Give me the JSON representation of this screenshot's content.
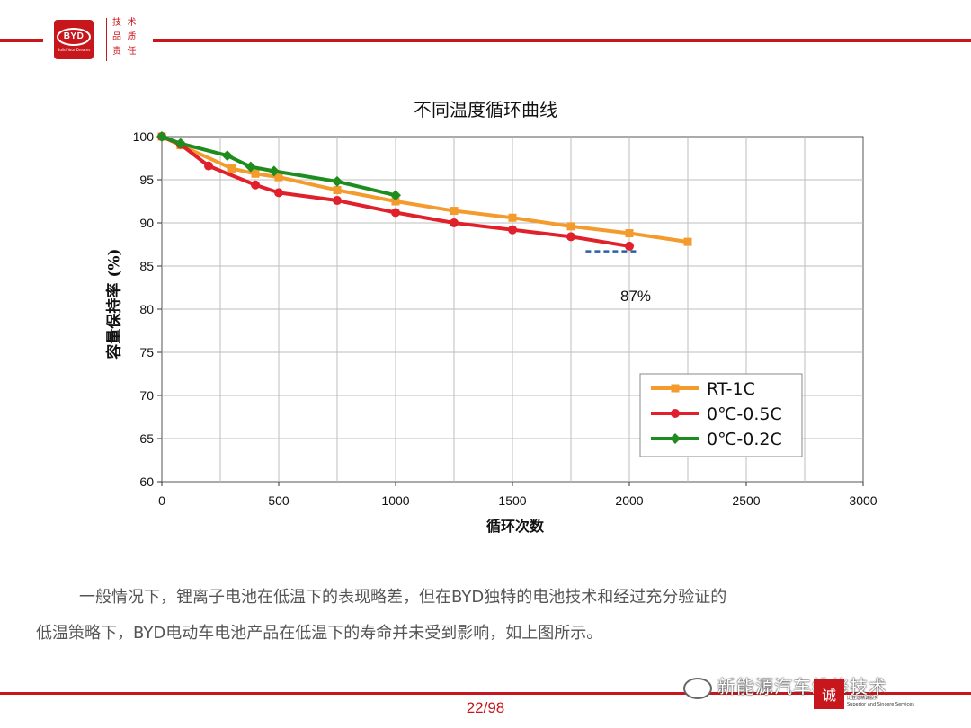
{
  "header": {
    "brand_logo_text": "BYD",
    "brand_logo_sub": "Build Your Dreams",
    "seal_text": [
      "技",
      "术",
      "品",
      "质",
      "责",
      "任"
    ]
  },
  "chart_data": {
    "type": "line",
    "title": "不同温度循环曲线",
    "xlabel": "循环次数",
    "ylabel": "容量保持率 (%)",
    "xlim": [
      0,
      3000
    ],
    "ylim": [
      60,
      100
    ],
    "xticks": [
      0,
      500,
      1000,
      1500,
      2000,
      2500,
      3000
    ],
    "yticks": [
      60,
      65,
      70,
      75,
      80,
      85,
      90,
      95,
      100
    ],
    "grid": true,
    "legend_position": "bottom-right",
    "series": [
      {
        "name": "RT-1C",
        "color": "#f39c2d",
        "marker": "square",
        "x": [
          0,
          80,
          300,
          400,
          500,
          750,
          1000,
          1250,
          1500,
          1750,
          2000,
          2250
        ],
        "y": [
          100,
          99.0,
          96.3,
          95.7,
          95.3,
          93.8,
          92.5,
          91.4,
          90.6,
          89.6,
          88.8,
          87.8
        ]
      },
      {
        "name": "0℃-0.5C",
        "color": "#e0202a",
        "marker": "circle",
        "x": [
          0,
          80,
          200,
          400,
          500,
          750,
          1000,
          1250,
          1500,
          1750,
          2000
        ],
        "y": [
          100,
          99.1,
          96.6,
          94.4,
          93.5,
          92.6,
          91.2,
          90.0,
          89.2,
          88.4,
          87.3
        ]
      },
      {
        "name": "0℃-0.2C",
        "color": "#1e8c1e",
        "marker": "diamond",
        "x": [
          0,
          80,
          280,
          380,
          480,
          750,
          1000
        ],
        "y": [
          100,
          99.2,
          97.8,
          96.5,
          96.0,
          94.8,
          93.2
        ]
      }
    ],
    "annotations": [
      {
        "text": "87%",
        "x": 1890,
        "y": 86.7,
        "line_color": "#2b5fa8",
        "line_style": "dashed"
      }
    ]
  },
  "body_text": {
    "line1": "一般情况下，锂离子电池在低温下的表现略差，但在BYD独特的电池技术和经过充分验证的",
    "line2": "低温策略下，BYD电动车电池产品在低温下的寿命并未受到影响，如上图所示。"
  },
  "footer": {
    "page_number": "22/98",
    "watermark": "新能源汽车维修技术",
    "corner_logo_char": "诚",
    "corner_text_cn": "比亚迪精诚服务",
    "corner_text_en": "Superior and Sincere Services"
  }
}
